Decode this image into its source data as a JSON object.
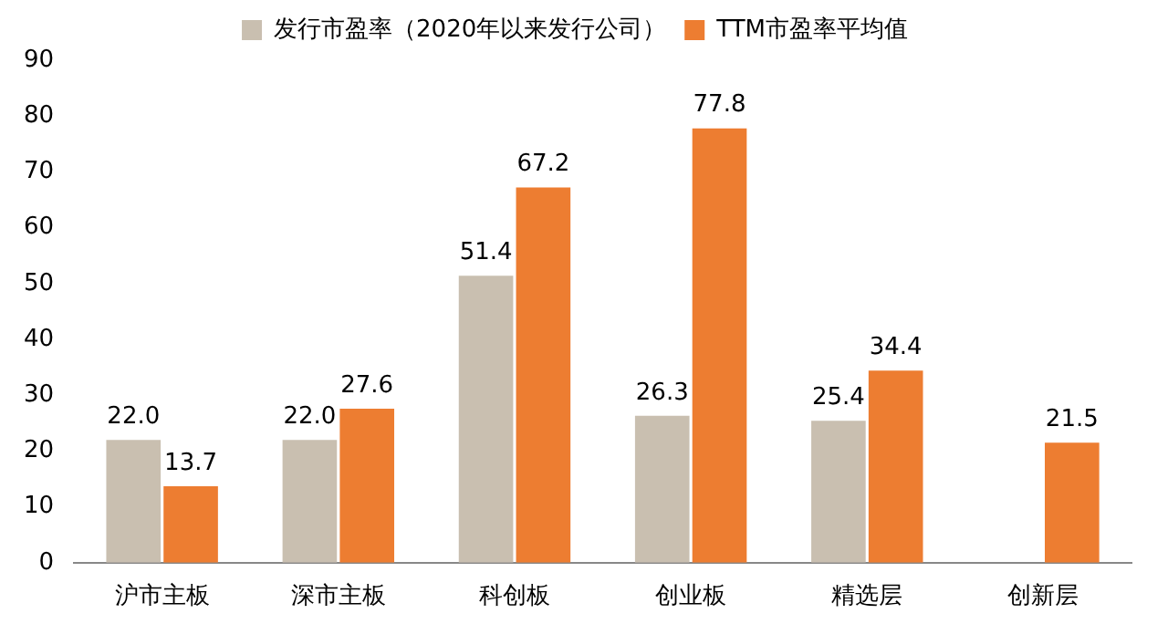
{
  "chart_data": {
    "type": "bar",
    "categories": [
      "沪市主板",
      "深市主板",
      "科创板",
      "创业板",
      "精选层",
      "创新层"
    ],
    "series": [
      {
        "name": "发行市盈率（2020年以来发行公司）",
        "color": "#c9bfb0",
        "values": [
          22.0,
          22.0,
          51.4,
          26.3,
          25.4,
          null
        ],
        "value_labels": [
          "22.0",
          "22.0",
          "51.4",
          "26.3",
          "25.4",
          null
        ]
      },
      {
        "name": "TTM市盈率平均值",
        "color": "#ed7d31",
        "values": [
          13.7,
          27.6,
          67.2,
          77.8,
          34.4,
          21.5
        ],
        "value_labels": [
          "13.7",
          "27.6",
          "67.2",
          "77.8",
          "34.4",
          "21.5"
        ]
      }
    ],
    "ylim": [
      0,
      90
    ],
    "yticks": [
      0,
      10,
      20,
      30,
      40,
      50,
      60,
      70,
      80,
      90
    ],
    "grid": false,
    "legend": "top"
  }
}
